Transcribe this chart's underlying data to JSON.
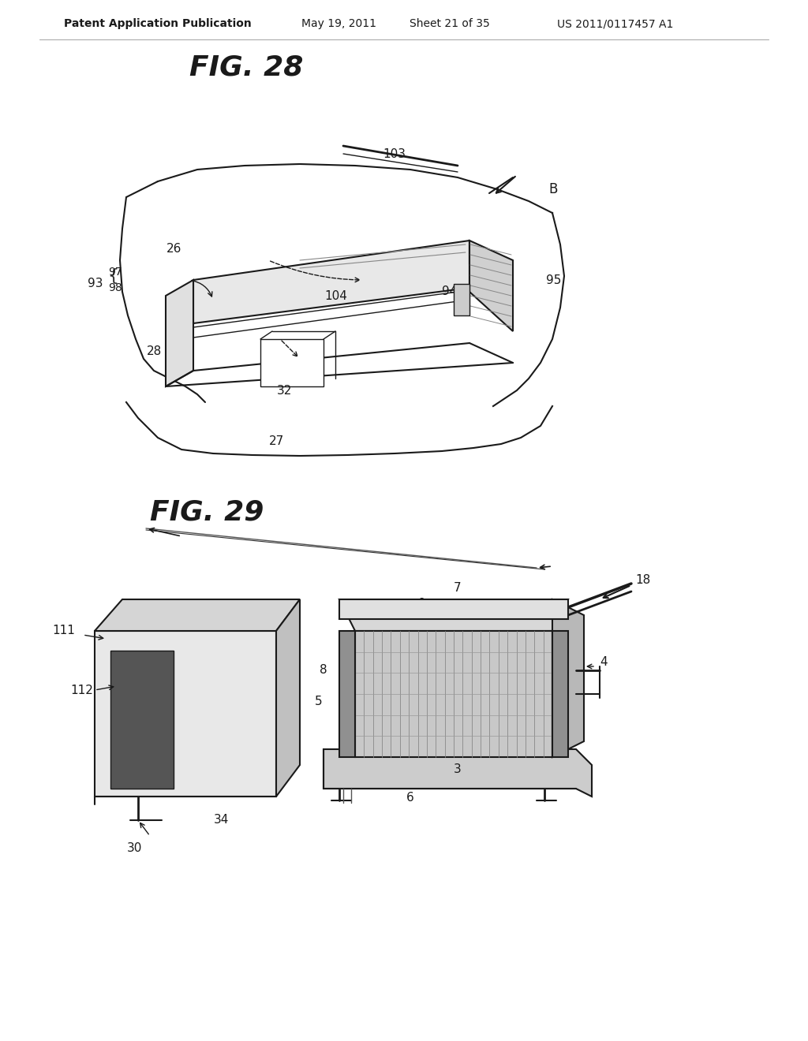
{
  "background_color": "#ffffff",
  "header_text": "Patent Application Publication",
  "header_date": "May 19, 2011",
  "header_sheet": "Sheet 21 of 35",
  "header_patent": "US 2011/0117457 A1",
  "fig28_title": "FIG. 28",
  "fig29_title": "FIG. 29",
  "line_color": "#1a1a1a",
  "light_gray": "#cccccc",
  "medium_gray": "#888888",
  "dark_gray": "#555555"
}
